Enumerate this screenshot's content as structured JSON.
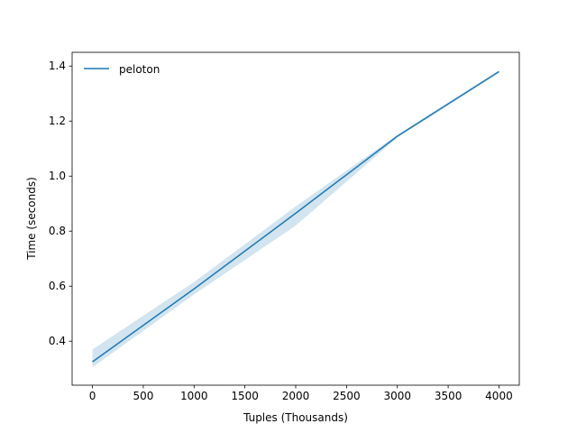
{
  "chart_data": {
    "type": "line",
    "title": "",
    "xlabel": "Tuples (Thousands)",
    "ylabel": "Time (seconds)",
    "xlim": [
      -200,
      4200
    ],
    "ylim": [
      0.24,
      1.45
    ],
    "x_ticks": [
      0,
      500,
      1000,
      1500,
      2000,
      2500,
      3000,
      3500,
      4000
    ],
    "x_tick_labels": [
      "0",
      "500",
      "1000",
      "1500",
      "2000",
      "2500",
      "3000",
      "3500",
      "4000"
    ],
    "y_ticks": [
      0.4,
      0.6,
      0.8,
      1.0,
      1.2,
      1.4
    ],
    "y_tick_labels": [
      "0.4",
      "0.6",
      "0.8",
      "1.0",
      "1.2",
      "1.4"
    ],
    "grid": false,
    "legend_position": "top-left",
    "series": [
      {
        "name": "peloton",
        "color": "#1f77b4",
        "band_color": "#1f77b4",
        "x": [
          0,
          1000,
          2000,
          3000,
          4000
        ],
        "y": [
          0.325,
          0.59,
          0.865,
          1.145,
          1.38
        ],
        "lower": [
          0.305,
          0.57,
          0.82,
          1.14,
          1.375
        ],
        "upper": [
          0.37,
          0.615,
          0.89,
          1.15,
          1.385
        ]
      }
    ]
  }
}
